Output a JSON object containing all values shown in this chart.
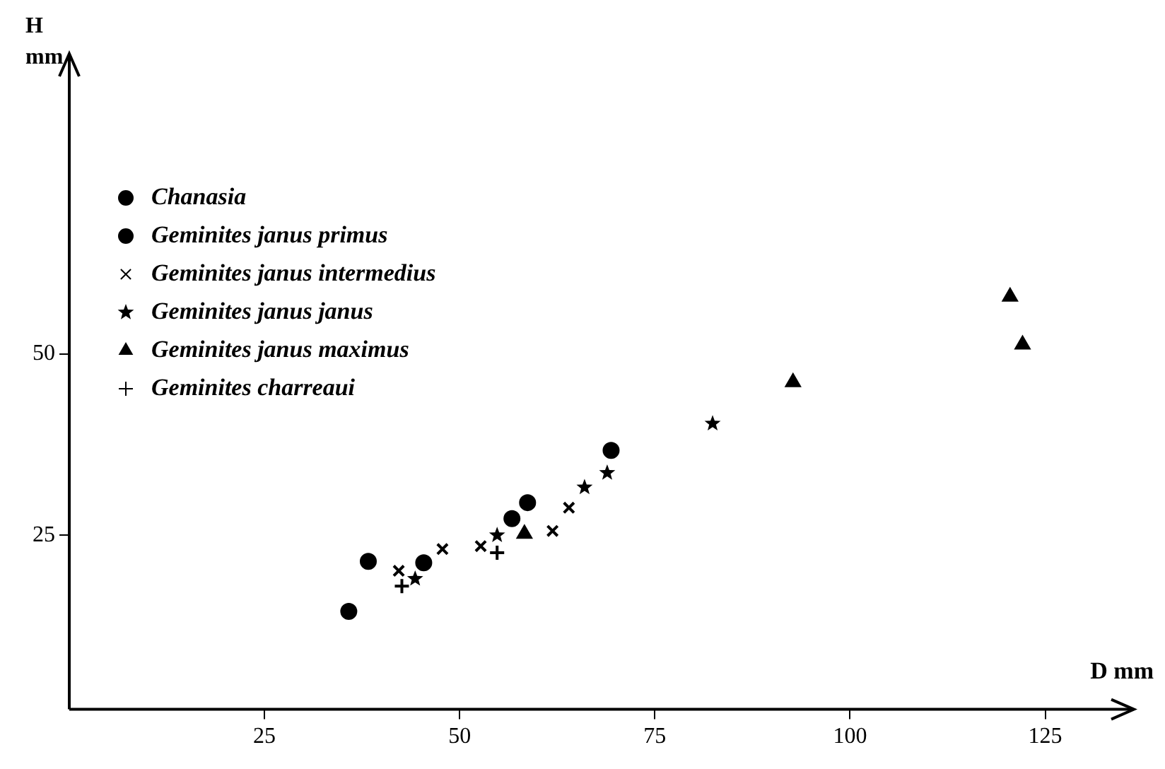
{
  "chart_data": {
    "type": "scatter",
    "xlabel": "D mm",
    "ylabel": "H mm",
    "xlim": [
      0,
      136
    ],
    "ylim": [
      1,
      91
    ],
    "xticks": [
      25,
      50,
      75,
      100,
      125
    ],
    "yticks": [
      25,
      50
    ],
    "grid": false,
    "legend": "top left",
    "series": [
      {
        "name": "Chanasia",
        "color": "#000000",
        "marker": "circle",
        "x": [
          38.3,
          58.7,
          69.4
        ],
        "values": [
          21.4,
          29.5,
          36.7
        ]
      },
      {
        "name": "Geminites janus primus",
        "color": "#000000",
        "marker": "circle",
        "x": [
          35.8,
          45.4,
          56.7
        ],
        "values": [
          14.5,
          21.2,
          27.3
        ]
      },
      {
        "name": "Geminites janus intermedius",
        "color": "#000000",
        "marker": "cross",
        "x": [
          42.2,
          47.8,
          52.7,
          61.9,
          64.0
        ],
        "values": [
          20.1,
          23.1,
          23.5,
          25.6,
          28.8
        ]
      },
      {
        "name": "Geminites janus janus",
        "color": "#000000",
        "marker": "star",
        "x": [
          44.3,
          54.8,
          66.0,
          68.9,
          82.4
        ],
        "values": [
          19.0,
          25.0,
          31.6,
          33.6,
          40.4
        ]
      },
      {
        "name": "Geminites janus maximus",
        "color": "#000000",
        "marker": "triangle",
        "x": [
          58.3,
          92.7,
          120.5,
          122.1
        ],
        "values": [
          25.2,
          46.1,
          57.9,
          51.3
        ]
      },
      {
        "name": "Geminites charreaui",
        "color": "#000000",
        "marker": "cross",
        "x": [
          42.6,
          54.8
        ],
        "values": [
          18.0,
          22.6
        ]
      }
    ]
  }
}
